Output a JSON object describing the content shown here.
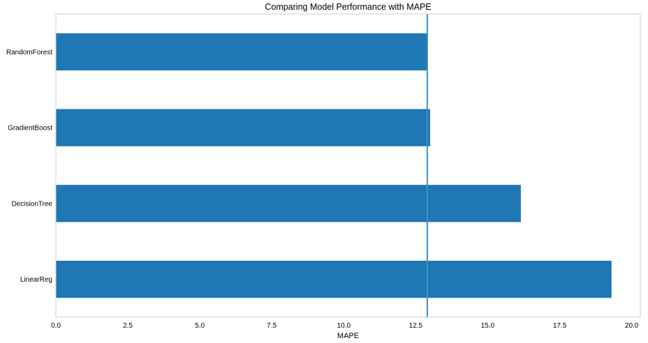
{
  "chart_data": {
    "type": "bar",
    "orientation": "horizontal",
    "title": "Comparing Model Performance with MAPE",
    "xlabel": "MAPE",
    "ylabel": "",
    "categories": [
      "RandomForest",
      "GradientBoost",
      "DecisionTree",
      "LinearReg"
    ],
    "values": [
      12.9,
      13.0,
      16.15,
      19.3
    ],
    "xlim": [
      0,
      20.3
    ],
    "xticks": [
      "0.0",
      "2.5",
      "5.0",
      "7.5",
      "10.0",
      "12.5",
      "15.0",
      "17.5",
      "20.0"
    ],
    "reference_line": {
      "orientation": "vertical",
      "value": 12.9
    },
    "grid": false,
    "legend": "none",
    "colors": {
      "bar": "#1f77b4",
      "reference_line": "#3f8fc2",
      "frame": "#cccccc",
      "background": "#ffffff"
    }
  }
}
